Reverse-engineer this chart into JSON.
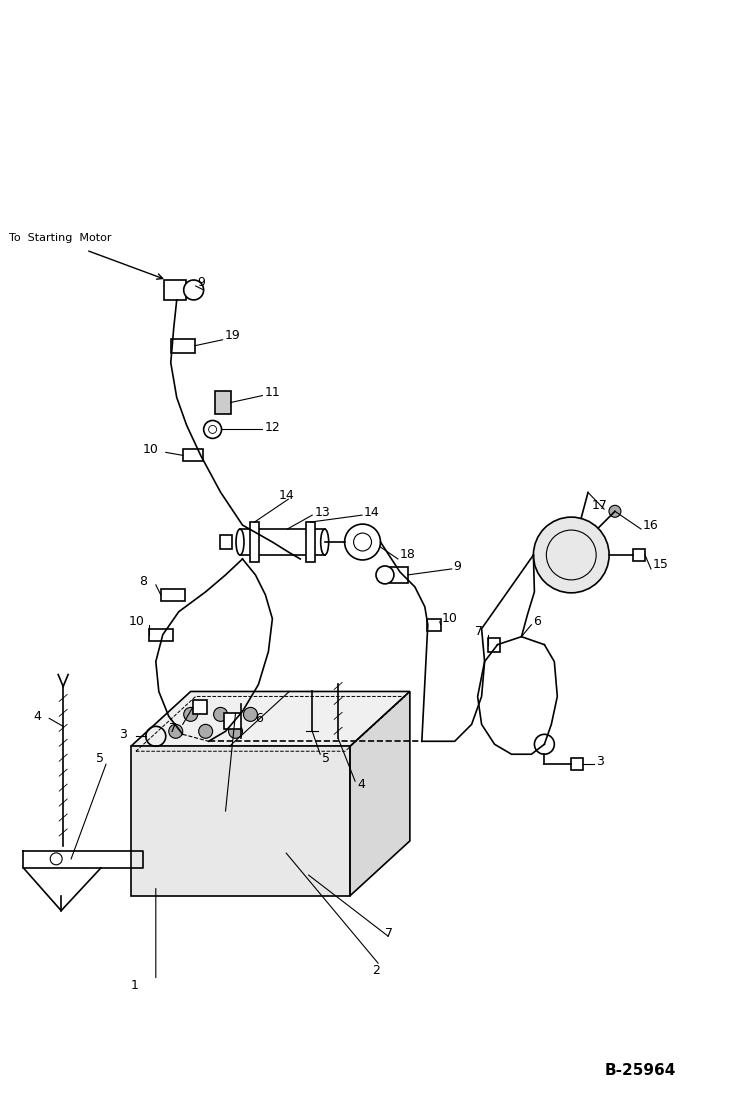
{
  "bg_color": "#ffffff",
  "line_color": "#000000",
  "fig_width": 7.49,
  "fig_height": 10.97,
  "dpi": 100,
  "watermark": "B-25964",
  "label_to_starting_motor": "To  Starting  Motor"
}
